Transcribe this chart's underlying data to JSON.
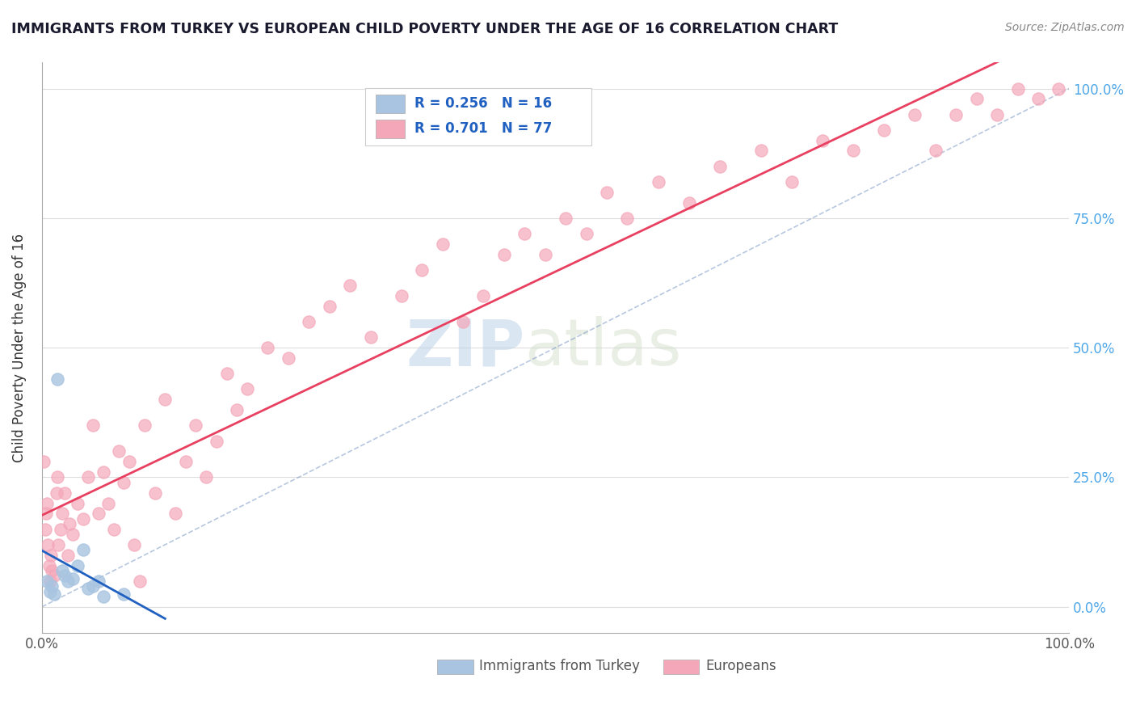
{
  "title": "IMMIGRANTS FROM TURKEY VS EUROPEAN CHILD POVERTY UNDER THE AGE OF 16 CORRELATION CHART",
  "source": "Source: ZipAtlas.com",
  "ylabel": "Child Poverty Under the Age of 16",
  "watermark_zip": "ZIP",
  "watermark_atlas": "atlas",
  "legend_R1": "R = 0.256",
  "legend_N1": "N = 16",
  "legend_R2": "R = 0.701",
  "legend_N2": "N = 77",
  "legend_label1": "Immigrants from Turkey",
  "legend_label2": "Europeans",
  "blue_color": "#a8c4e0",
  "pink_color": "#f4a7b9",
  "blue_line_color": "#2060c0",
  "pink_line_color": "#e84060",
  "axis_label_color": "#333333",
  "title_color": "#1a1a2e",
  "R_color": "#2060c0",
  "tick_color_right": "#4da6e8",
  "turkey_x": [
    0.5,
    0.8,
    1.0,
    1.2,
    1.5,
    2.0,
    2.2,
    2.5,
    3.0,
    3.5,
    4.0,
    4.5,
    5.0,
    5.5,
    6.0,
    8.0
  ],
  "turkey_y": [
    5.0,
    3.0,
    4.0,
    2.5,
    44.0,
    7.0,
    6.0,
    5.0,
    5.5,
    8.0,
    11.0,
    3.5,
    4.0,
    5.0,
    2.0,
    2.5
  ],
  "europeans_x": [
    0.2,
    0.3,
    0.4,
    0.5,
    0.6,
    0.7,
    0.8,
    0.9,
    1.0,
    1.2,
    1.4,
    1.5,
    1.6,
    1.8,
    2.0,
    2.2,
    2.5,
    2.7,
    3.0,
    3.5,
    4.0,
    4.5,
    5.0,
    5.5,
    6.0,
    6.5,
    7.0,
    7.5,
    8.0,
    8.5,
    9.0,
    9.5,
    10.0,
    11.0,
    12.0,
    13.0,
    14.0,
    15.0,
    16.0,
    17.0,
    18.0,
    19.0,
    20.0,
    22.0,
    24.0,
    26.0,
    28.0,
    30.0,
    32.0,
    35.0,
    37.0,
    39.0,
    41.0,
    43.0,
    45.0,
    47.0,
    49.0,
    51.0,
    53.0,
    55.0,
    57.0,
    60.0,
    63.0,
    66.0,
    70.0,
    73.0,
    76.0,
    79.0,
    82.0,
    85.0,
    87.0,
    89.0,
    91.0,
    93.0,
    95.0,
    97.0,
    99.0
  ],
  "europeans_y": [
    28.0,
    15.0,
    18.0,
    20.0,
    12.0,
    8.0,
    5.0,
    10.0,
    7.0,
    6.0,
    22.0,
    25.0,
    12.0,
    15.0,
    18.0,
    22.0,
    10.0,
    16.0,
    14.0,
    20.0,
    17.0,
    25.0,
    35.0,
    18.0,
    26.0,
    20.0,
    15.0,
    30.0,
    24.0,
    28.0,
    12.0,
    5.0,
    35.0,
    22.0,
    40.0,
    18.0,
    28.0,
    35.0,
    25.0,
    32.0,
    45.0,
    38.0,
    42.0,
    50.0,
    48.0,
    55.0,
    58.0,
    62.0,
    52.0,
    60.0,
    65.0,
    70.0,
    55.0,
    60.0,
    68.0,
    72.0,
    68.0,
    75.0,
    72.0,
    80.0,
    75.0,
    82.0,
    78.0,
    85.0,
    88.0,
    82.0,
    90.0,
    88.0,
    92.0,
    95.0,
    88.0,
    95.0,
    98.0,
    95.0,
    100.0,
    98.0,
    100.0
  ],
  "xlim": [
    0.0,
    100.0
  ],
  "ylim": [
    -5.0,
    105.0
  ],
  "grid_color": "#dddddd",
  "background_color": "#ffffff",
  "yticks": [
    0,
    25,
    50,
    75,
    100
  ],
  "ytick_labels_right": [
    "0.0%",
    "25.0%",
    "50.0%",
    "75.0%",
    "100.0%"
  ],
  "xtick_labels": [
    "0.0%",
    "100.0%"
  ]
}
